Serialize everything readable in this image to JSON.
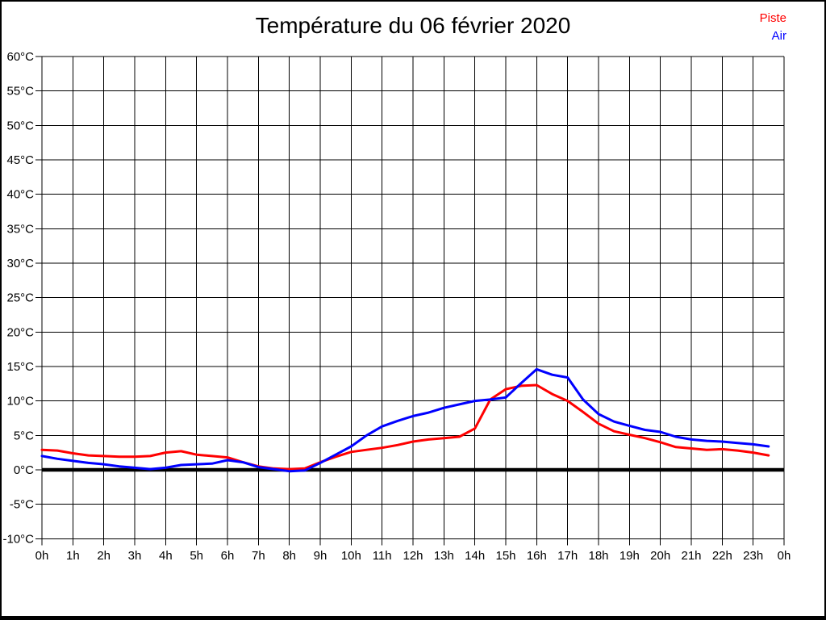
{
  "chart_data": {
    "type": "line",
    "title": "Température du 06 février 2020",
    "xlabel": "",
    "ylabel": "",
    "x_unit": "hour of day",
    "y_unit": "°C",
    "xlim": [
      0,
      24
    ],
    "ylim": [
      -10,
      60
    ],
    "y_tick_step": 5,
    "grid": true,
    "zero_line": true,
    "legend_position": "top-right",
    "x_tick_labels": [
      "0h",
      "1h",
      "2h",
      "3h",
      "4h",
      "5h",
      "6h",
      "7h",
      "8h",
      "9h",
      "10h",
      "11h",
      "12h",
      "13h",
      "14h",
      "15h",
      "16h",
      "17h",
      "18h",
      "19h",
      "20h",
      "21h",
      "22h",
      "23h",
      "0h"
    ],
    "y_tick_labels": [
      "60°C",
      "55°C",
      "50°C",
      "45°C",
      "40°C",
      "35°C",
      "30°C",
      "25°C",
      "20°C",
      "15°C",
      "10°C",
      "5°C",
      "0°C",
      "-5°C",
      "-10°C"
    ],
    "x": [
      0,
      0.5,
      1,
      1.5,
      2,
      2.5,
      3,
      3.5,
      4,
      4.5,
      5,
      5.5,
      6,
      6.5,
      7,
      7.5,
      8,
      8.5,
      9,
      9.5,
      10,
      10.5,
      11,
      11.5,
      12,
      12.5,
      13,
      13.5,
      14,
      14.5,
      15,
      15.5,
      16,
      16.5,
      17,
      17.5,
      18,
      18.5,
      19,
      19.5,
      20,
      20.5,
      21,
      21.5,
      22,
      22.5,
      23,
      23.5
    ],
    "series": [
      {
        "name": "Piste",
        "color": "#ff0000",
        "values": [
          2.9,
          2.8,
          2.4,
          2.1,
          2.0,
          1.9,
          1.9,
          2.0,
          2.5,
          2.7,
          2.2,
          2.0,
          1.8,
          1.1,
          0.5,
          0.2,
          0.1,
          0.2,
          1.1,
          1.9,
          2.6,
          2.9,
          3.2,
          3.6,
          4.1,
          4.4,
          4.6,
          4.8,
          6.0,
          10.2,
          11.7,
          12.2,
          12.3,
          11.0,
          10.0,
          8.4,
          6.7,
          5.6,
          5.1,
          4.6,
          4.0,
          3.3,
          3.1,
          2.9,
          3.0,
          2.8,
          2.5,
          2.1
        ]
      },
      {
        "name": "Air",
        "color": "#0000ff",
        "values": [
          2.0,
          1.6,
          1.3,
          1.0,
          0.8,
          0.5,
          0.3,
          0.1,
          0.3,
          0.7,
          0.8,
          0.9,
          1.4,
          1.1,
          0.4,
          0.1,
          -0.2,
          -0.1,
          1.0,
          2.2,
          3.4,
          5.0,
          6.3,
          7.1,
          7.8,
          8.3,
          9.0,
          9.5,
          10.0,
          10.2,
          10.5,
          12.6,
          14.6,
          13.8,
          13.4,
          10.2,
          8.1,
          7.0,
          6.4,
          5.8,
          5.5,
          4.8,
          4.4,
          4.2,
          4.1,
          3.9,
          3.7,
          3.4
        ]
      }
    ]
  }
}
